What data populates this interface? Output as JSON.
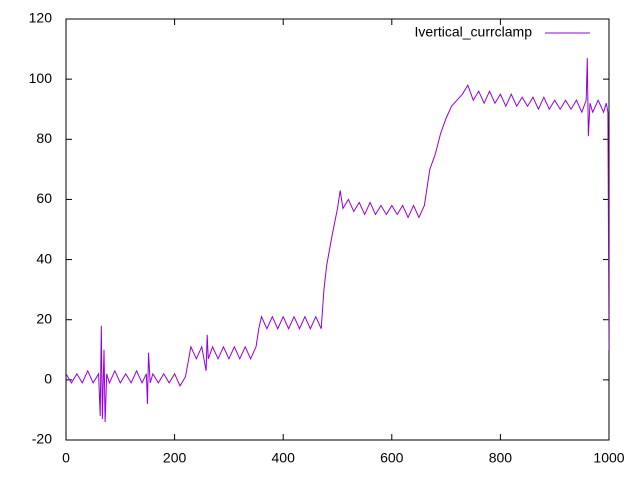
{
  "chart_data": {
    "type": "line",
    "x": [
      0,
      10,
      20,
      30,
      40,
      50,
      60,
      63,
      65,
      67,
      70,
      72,
      75,
      80,
      90,
      100,
      110,
      120,
      130,
      140,
      148,
      150,
      152,
      155,
      160,
      170,
      180,
      190,
      200,
      210,
      220,
      225,
      230,
      240,
      250,
      258,
      260,
      262,
      270,
      280,
      290,
      300,
      310,
      320,
      330,
      340,
      350,
      355,
      360,
      370,
      380,
      390,
      400,
      410,
      420,
      430,
      440,
      450,
      460,
      470,
      475,
      480,
      490,
      500,
      505,
      510,
      520,
      530,
      540,
      550,
      560,
      570,
      580,
      590,
      600,
      610,
      620,
      630,
      640,
      650,
      660,
      665,
      670,
      680,
      690,
      700,
      710,
      720,
      730,
      740,
      750,
      760,
      770,
      780,
      790,
      800,
      810,
      820,
      830,
      840,
      850,
      860,
      870,
      880,
      890,
      900,
      910,
      920,
      930,
      940,
      950,
      958,
      960,
      962,
      965,
      970,
      980,
      990,
      995,
      998,
      1000
    ],
    "series": [
      {
        "name": "Ivertical_currclamp",
        "color": "#9400d3",
        "values": [
          2,
          -1,
          2,
          -1,
          3,
          -1,
          2,
          -12,
          18,
          -13,
          10,
          -14,
          2,
          -1,
          3,
          -1,
          2,
          -1,
          3,
          -1,
          2,
          -8,
          9,
          -1,
          2,
          -1,
          2,
          -1,
          2,
          -2,
          1,
          6,
          11,
          7,
          11,
          3,
          15,
          7,
          11,
          7,
          11,
          7,
          11,
          7,
          11,
          7,
          11,
          17,
          21,
          17,
          21,
          17,
          21,
          17,
          21,
          17,
          21,
          17,
          21,
          17,
          30,
          38,
          48,
          57,
          63,
          57,
          60,
          56,
          59,
          55,
          59,
          55,
          58,
          55,
          58,
          55,
          58,
          54,
          58,
          54,
          58,
          64,
          70,
          75,
          82,
          87,
          91,
          93,
          95,
          98,
          93,
          96,
          92,
          96,
          92,
          95,
          91,
          95,
          91,
          94,
          91,
          94,
          90,
          94,
          90,
          93,
          90,
          93,
          90,
          93,
          89,
          93,
          107,
          81,
          92,
          89,
          93,
          89,
          92,
          89,
          10
        ]
      }
    ],
    "xlim": [
      0,
      1000
    ],
    "xticks": [
      0,
      200,
      400,
      600,
      800,
      1000
    ],
    "ylim": [
      -20,
      120
    ],
    "yticks": [
      -20,
      0,
      20,
      40,
      60,
      80,
      100,
      120
    ],
    "grid": false,
    "legend": "top-right"
  }
}
